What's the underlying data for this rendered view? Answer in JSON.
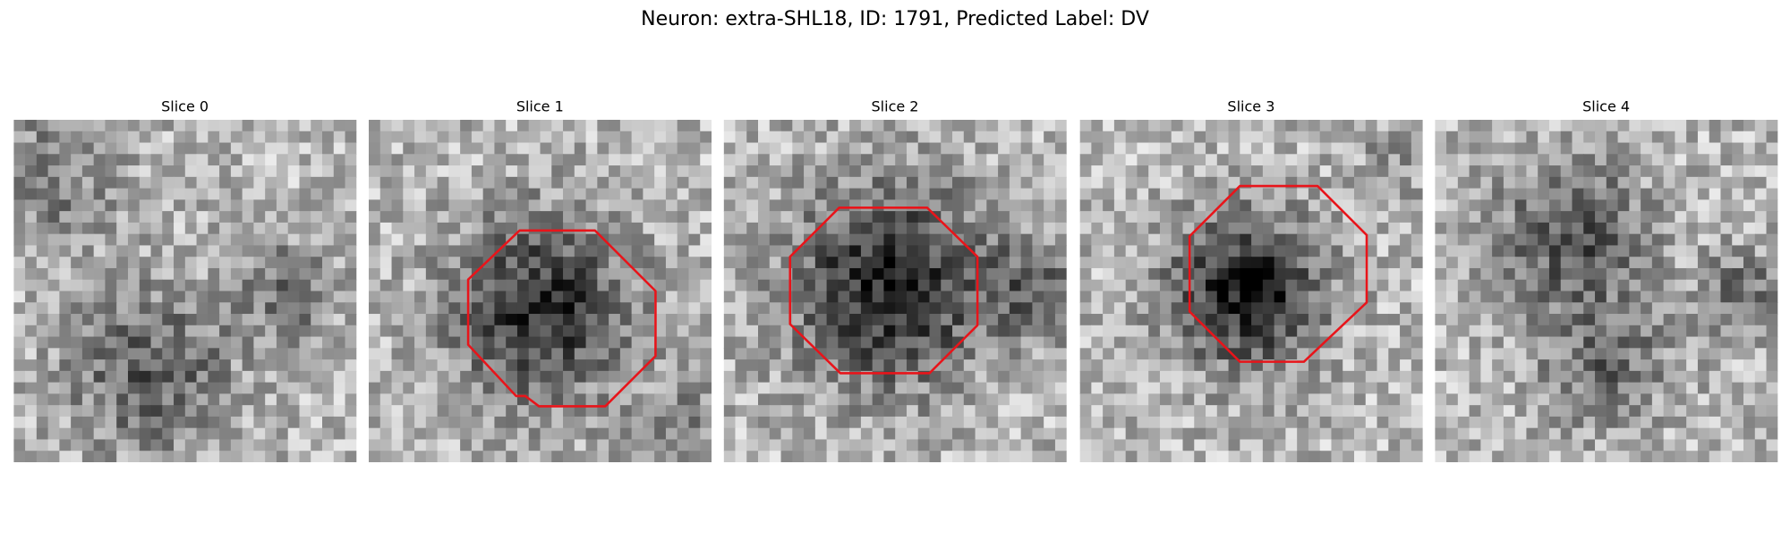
{
  "figure": {
    "title": "Neuron: extra-SHL18, ID: 1791, Predicted Label: DV",
    "panels": [
      {
        "title": "Slice 0"
      },
      {
        "title": "Slice 1"
      },
      {
        "title": "Slice 2"
      },
      {
        "title": "Slice 3"
      },
      {
        "title": "Slice 4"
      }
    ]
  }
}
